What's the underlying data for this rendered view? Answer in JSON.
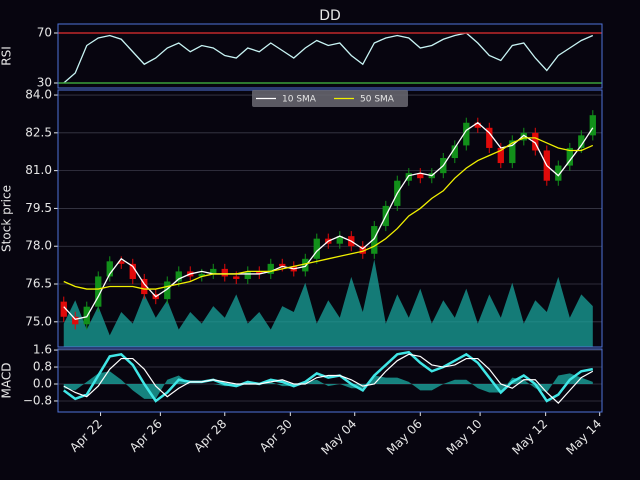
{
  "chart_data": [
    {
      "type": "line",
      "title": "DD",
      "ylabel": "RSI",
      "x": [
        0,
        1,
        2,
        3,
        4,
        5,
        6,
        7,
        8,
        9,
        10,
        11,
        12,
        13,
        14,
        15,
        16,
        17,
        18,
        19,
        20,
        21,
        22,
        23,
        24,
        25,
        26,
        27,
        28,
        29,
        30,
        31,
        32,
        33,
        34,
        35,
        36,
        37,
        38,
        39,
        40,
        41,
        42,
        43,
        44,
        45,
        46
      ],
      "xlim": [
        -0.5,
        46.8
      ],
      "ylim": [
        26,
        77.2
      ],
      "yticks": [
        30,
        70
      ],
      "hlines": [
        {
          "value": 70,
          "color": "#c0282a"
        },
        {
          "value": 30,
          "color": "#3aa03a"
        }
      ],
      "series": [
        {
          "color": "#c8f4f4",
          "values": [
            30,
            38,
            60,
            66,
            68,
            65,
            55,
            45,
            50,
            58,
            62,
            55,
            60,
            58,
            52,
            50,
            58,
            55,
            62,
            56,
            50,
            58,
            64,
            60,
            62,
            52,
            45,
            62,
            66,
            68,
            66,
            58,
            60,
            65,
            68,
            70,
            62,
            52,
            48,
            60,
            62,
            50,
            40,
            52,
            58,
            64,
            68
          ]
        }
      ]
    },
    {
      "type": "candlestick",
      "ylabel": "Stock price",
      "grid": true,
      "legend": "upper center",
      "x": [
        0,
        1,
        2,
        3,
        4,
        5,
        6,
        7,
        8,
        9,
        10,
        11,
        12,
        13,
        14,
        15,
        16,
        17,
        18,
        19,
        20,
        21,
        22,
        23,
        24,
        25,
        26,
        27,
        28,
        29,
        30,
        31,
        32,
        33,
        34,
        35,
        36,
        37,
        38,
        39,
        40,
        41,
        42,
        43,
        44,
        45,
        46
      ],
      "xlim": [
        -0.5,
        46.8
      ],
      "ylim": [
        74.0,
        84.2
      ],
      "yticks": [
        {
          "value": 75,
          "label": "75.0"
        },
        {
          "value": 76.5,
          "label": "76.5"
        },
        {
          "value": 78,
          "label": "78.0"
        },
        {
          "value": 79.5,
          "label": "79.5"
        },
        {
          "value": 81,
          "label": "81.0"
        },
        {
          "value": 82.5,
          "label": "82.5"
        },
        {
          "value": 84,
          "label": "84.0"
        }
      ],
      "up_color": "#12901a",
      "down_color": "#e00a0a",
      "open": [
        75.8,
        75.2,
        74.9,
        75.6,
        76.8,
        77.4,
        77.3,
        76.7,
        76.1,
        75.9,
        76.6,
        77.0,
        76.8,
        76.9,
        77.1,
        76.8,
        76.7,
        77.0,
        76.9,
        77.3,
        77.2,
        77.0,
        77.5,
        78.3,
        78.1,
        78.4,
        78.0,
        77.7,
        78.8,
        79.6,
        80.6,
        80.9,
        80.7,
        80.9,
        81.5,
        82.0,
        82.9,
        82.7,
        81.9,
        81.3,
        82.2,
        82.5,
        81.8,
        80.6,
        81.2,
        81.9,
        82.4
      ],
      "high": [
        76.0,
        75.4,
        75.8,
        77.0,
        77.6,
        77.6,
        77.5,
        76.9,
        76.3,
        76.8,
        77.2,
        77.2,
        77.1,
        77.3,
        77.3,
        77.0,
        77.2,
        77.2,
        77.5,
        77.5,
        77.4,
        77.7,
        78.5,
        78.5,
        78.6,
        78.6,
        78.2,
        79.0,
        79.8,
        80.8,
        81.1,
        81.1,
        81.1,
        81.7,
        82.2,
        83.1,
        83.1,
        82.9,
        82.1,
        82.4,
        82.7,
        82.7,
        82.0,
        81.4,
        82.1,
        82.6,
        83.4
      ],
      "low": [
        75.0,
        74.7,
        74.7,
        75.4,
        76.6,
        77.1,
        76.5,
        75.9,
        75.7,
        75.7,
        76.4,
        76.6,
        76.6,
        76.7,
        76.6,
        76.5,
        76.5,
        76.7,
        76.7,
        77.0,
        76.8,
        76.8,
        77.3,
        77.9,
        77.9,
        77.8,
        77.5,
        77.5,
        78.6,
        79.4,
        80.4,
        80.5,
        80.5,
        80.7,
        81.3,
        81.8,
        82.5,
        81.7,
        81.1,
        81.1,
        82.0,
        81.6,
        80.4,
        80.4,
        81.0,
        81.7,
        82.2
      ],
      "close": [
        75.2,
        74.9,
        75.6,
        76.8,
        77.4,
        77.3,
        76.7,
        76.1,
        75.9,
        76.6,
        77.0,
        76.8,
        76.9,
        77.1,
        76.8,
        76.7,
        77.0,
        76.9,
        77.3,
        77.2,
        77.0,
        77.5,
        78.3,
        78.1,
        78.4,
        78.0,
        77.7,
        78.8,
        79.6,
        80.6,
        80.9,
        80.7,
        80.9,
        81.5,
        82.0,
        82.9,
        82.7,
        81.9,
        81.3,
        82.2,
        82.5,
        81.8,
        80.6,
        81.2,
        81.9,
        82.4,
        83.2
      ],
      "series": [
        {
          "name": "10 SMA",
          "color": "#ffffff",
          "values": [
            75.6,
            75.1,
            75.2,
            76.0,
            76.9,
            77.5,
            77.2,
            76.5,
            76.0,
            76.3,
            76.7,
            76.9,
            77.0,
            76.9,
            76.9,
            76.9,
            76.9,
            76.9,
            77.0,
            77.2,
            77.1,
            77.2,
            77.8,
            78.2,
            78.4,
            78.2,
            77.9,
            78.3,
            79.2,
            80.1,
            80.8,
            80.9,
            80.8,
            81.2,
            81.9,
            82.6,
            82.9,
            82.5,
            81.9,
            82.0,
            82.4,
            82.1,
            81.2,
            80.8,
            81.4,
            82.0,
            82.7
          ]
        },
        {
          "name": "50 SMA",
          "color": "#f0f000",
          "values": [
            76.6,
            76.4,
            76.3,
            76.3,
            76.4,
            76.4,
            76.4,
            76.3,
            76.3,
            76.4,
            76.5,
            76.6,
            76.8,
            76.9,
            76.9,
            76.9,
            77.0,
            77.0,
            77.0,
            77.1,
            77.2,
            77.3,
            77.4,
            77.5,
            77.6,
            77.7,
            77.8,
            78.0,
            78.3,
            78.7,
            79.2,
            79.5,
            79.9,
            80.2,
            80.7,
            81.1,
            81.4,
            81.6,
            81.8,
            82.1,
            82.3,
            82.3,
            82.1,
            81.9,
            81.8,
            81.8,
            82.0
          ]
        }
      ],
      "y2lim": [
        0,
        220
      ],
      "volume": {
        "color": "#1aa39b",
        "values": [
          20,
          40,
          15,
          35,
          10,
          30,
          20,
          45,
          25,
          40,
          15,
          30,
          20,
          35,
          25,
          45,
          20,
          30,
          15,
          35,
          30,
          55,
          20,
          40,
          25,
          60,
          30,
          75,
          20,
          45,
          25,
          50,
          20,
          40,
          25,
          50,
          20,
          45,
          25,
          55,
          20,
          40,
          30,
          60,
          25,
          45,
          35
        ]
      }
    },
    {
      "type": "line",
      "ylabel": "MACD",
      "grid": true,
      "x": [
        0,
        1,
        2,
        3,
        4,
        5,
        6,
        7,
        8,
        9,
        10,
        11,
        12,
        13,
        14,
        15,
        16,
        17,
        18,
        19,
        20,
        21,
        22,
        23,
        24,
        25,
        26,
        27,
        28,
        29,
        30,
        31,
        32,
        33,
        34,
        35,
        36,
        37,
        38,
        39,
        40,
        41,
        42,
        43,
        44,
        45,
        46
      ],
      "xlim": [
        -0.5,
        46.8
      ],
      "ylim": [
        -1.32,
        1.65
      ],
      "yticks": [
        {
          "value": -0.8,
          "label": "−0.8"
        },
        {
          "value": 0,
          "label": "0.0"
        },
        {
          "value": 0.8,
          "label": "0.8"
        },
        {
          "value": 1.6,
          "label": "1.6"
        }
      ],
      "xticks": [
        {
          "value": 3.2,
          "label": "Apr 22"
        },
        {
          "value": 8.4,
          "label": "Apr 26"
        },
        {
          "value": 14,
          "label": "Apr 28"
        },
        {
          "value": 19.7,
          "label": "Apr 30"
        },
        {
          "value": 25.3,
          "label": "May 04"
        },
        {
          "value": 31,
          "label": "May 06"
        },
        {
          "value": 36.2,
          "label": "May 10"
        },
        {
          "value": 41.9,
          "label": "May 12"
        },
        {
          "value": 46.6,
          "label": "May 14"
        }
      ],
      "histogram": {
        "color": "#1aa39b",
        "values": [
          -0.2,
          -0.3,
          0.1,
          0.5,
          0.6,
          0.2,
          -0.3,
          -0.7,
          -0.7,
          0.2,
          0.4,
          0,
          0,
          0,
          -0.1,
          -0.1,
          0.1,
          0,
          0.1,
          -0.1,
          -0.1,
          0.1,
          0.2,
          -0.1,
          0,
          -0.2,
          -0.2,
          0.4,
          0.3,
          0.3,
          0.1,
          -0.3,
          -0.3,
          0,
          0.2,
          0.2,
          -0.2,
          -0.4,
          -0.4,
          0.3,
          0.2,
          -0.2,
          -0.4,
          0.4,
          0.5,
          0.3,
          0.1
        ]
      },
      "series": [
        {
          "color": "#40e6e6",
          "width": 2.5,
          "values": [
            -0.3,
            -0.7,
            -0.5,
            0.4,
            1.3,
            1.4,
            0.9,
            0,
            -0.8,
            -0.4,
            0.2,
            0.1,
            0.1,
            0.2,
            0,
            -0.1,
            0.1,
            0,
            0.2,
            0.1,
            -0.1,
            0.1,
            0.5,
            0.3,
            0.4,
            0,
            -0.3,
            0.4,
            0.9,
            1.4,
            1.5,
            1.0,
            0.6,
            0.8,
            1.1,
            1.4,
            1.0,
            0.3,
            -0.4,
            0.1,
            0.4,
            0,
            -0.8,
            -0.5,
            0.2,
            0.6,
            0.7
          ]
        },
        {
          "color": "#ffffff",
          "width": 1.2,
          "values": [
            -0.1,
            -0.4,
            -0.6,
            -0.1,
            0.7,
            1.2,
            1.2,
            0.7,
            -0.1,
            -0.6,
            -0.2,
            0.1,
            0.1,
            0.2,
            0.1,
            0,
            0,
            0,
            0.1,
            0.2,
            0,
            0,
            0.3,
            0.4,
            0.4,
            0.2,
            -0.1,
            0,
            0.6,
            1.1,
            1.4,
            1.3,
            0.9,
            0.8,
            0.9,
            1.2,
            1.2,
            0.7,
            0,
            -0.2,
            0.2,
            0.2,
            -0.4,
            -0.9,
            -0.3,
            0.3,
            0.6
          ]
        }
      ]
    }
  ]
}
